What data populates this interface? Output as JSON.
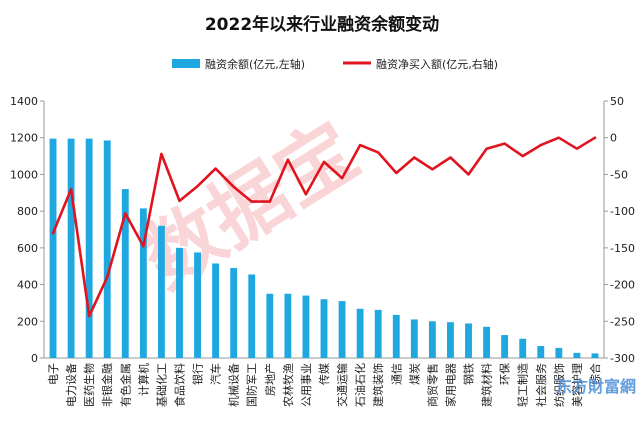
{
  "chart_data": {
    "type": "bar+line",
    "title": "2022年以来行业融资余额变动",
    "categories": [
      "电子",
      "电力设备",
      "医药生物",
      "非银金融",
      "有色金属",
      "计算机",
      "基础化工",
      "食品饮料",
      "银行",
      "汽车",
      "机械设备",
      "国防军工",
      "房地产",
      "农林牧渔",
      "公用事业",
      "传媒",
      "交通运输",
      "石油石化",
      "建筑装饰",
      "通信",
      "煤炭",
      "商贸零售",
      "家用电器",
      "钢铁",
      "建筑材料",
      "环保",
      "轻工制造",
      "社会服务",
      "纺织服饰",
      "美容护理",
      "综合"
    ],
    "series": [
      {
        "name": "融资余额(亿元,左轴)",
        "type": "bar",
        "axis": "left",
        "color": "#1fa7e0",
        "values": [
          1195,
          1195,
          1195,
          1185,
          920,
          815,
          720,
          600,
          575,
          515,
          490,
          455,
          350,
          350,
          340,
          320,
          310,
          268,
          262,
          235,
          210,
          200,
          195,
          188,
          170,
          125,
          105,
          65,
          55,
          28,
          25
        ]
      },
      {
        "name": "融资净买入额(亿元,右轴)",
        "type": "line",
        "axis": "right",
        "color": "#e0141e",
        "values": [
          -130,
          -70,
          -243,
          -190,
          -103,
          -148,
          -22,
          -86,
          -66,
          -42,
          -67,
          -87,
          -87,
          -30,
          -77,
          -33,
          -55,
          -10,
          -20,
          -48,
          -27,
          -43,
          -27,
          -50,
          -15,
          -8,
          -25,
          -10,
          0,
          -15,
          0
        ]
      }
    ],
    "left_axis": {
      "min": 0,
      "max": 1400,
      "ticks": [
        "0",
        "200",
        "400",
        "600",
        "800",
        "1000",
        "1200",
        "1400"
      ]
    },
    "right_axis": {
      "min": -300,
      "max": 50,
      "ticks": [
        "-300",
        "-250",
        "-200",
        "-150",
        "-100",
        "-50",
        "0",
        "50"
      ]
    },
    "legend_position": "top",
    "grid": false
  },
  "watermark": "数据宝",
  "logo": "东方財富網"
}
